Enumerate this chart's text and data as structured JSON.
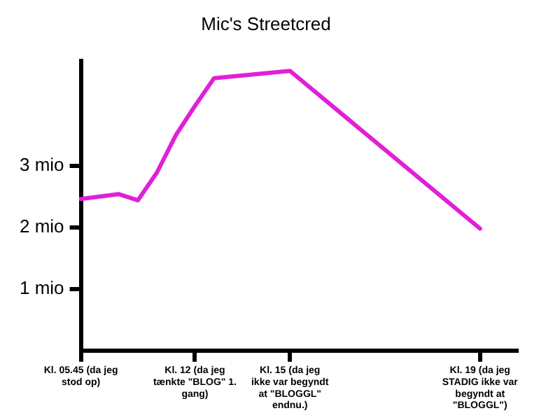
{
  "chart_data": {
    "type": "line",
    "title": "Mic's Streetcred",
    "categories": [
      "Kl. 05.45 (da jeg stod op)",
      null,
      null,
      null,
      null,
      null,
      "Kl. 12 (da jeg tænkte \"BLOG\" 1. gang)",
      null,
      null,
      null,
      null,
      "Kl. 15 (da jeg ikke var begyndt at \"BLOGGL\" endnu.)",
      null,
      null,
      null,
      null,
      null,
      null,
      null,
      null,
      null,
      "Kl. 19 (da jeg STADIG ikke var begyndt at \"BLOGGL\")",
      null,
      null
    ],
    "series": [
      {
        "color": "#e020d8",
        "values": [
          2.46,
          null,
          2.54,
          2.44,
          2.89,
          3.5,
          3.97,
          4.42,
          null,
          null,
          null,
          4.54,
          null,
          null,
          null,
          null,
          null,
          null,
          null,
          null,
          null,
          1.98,
          null,
          null
        ]
      }
    ],
    "ylim": [
      0,
      4.7
    ],
    "yticks": [
      {
        "value": 1,
        "label": "1 mio"
      },
      {
        "value": 2,
        "label": "2 mio"
      },
      {
        "value": 3,
        "label": "3 mio"
      }
    ],
    "grid": false,
    "legend": false,
    "marker": "none",
    "line_style": "solid"
  }
}
